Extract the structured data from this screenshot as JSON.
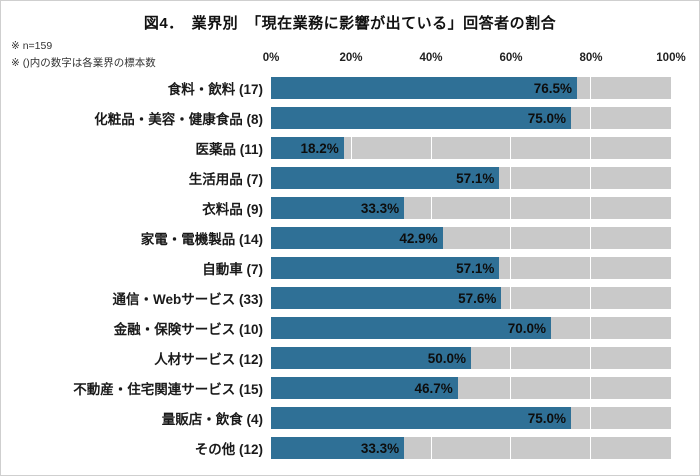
{
  "title": "図4．　業界別　「現在業務に影響が出ている」回答者の割合",
  "notes": [
    "※ n=159",
    "※ ()内の数字は各業界の標本数"
  ],
  "chart_data": {
    "type": "bar",
    "orientation": "horizontal",
    "title": "図4．　業界別　「現在業務に影響が出ている」回答者の割合",
    "categories": [
      "食料・飲料 (17)",
      "化粧品・美容・健康食品 (8)",
      "医薬品 (11)",
      "生活用品 (7)",
      "衣料品 (9)",
      "家電・電機製品 (14)",
      "自動車 (7)",
      "通信・Webサービス (33)",
      "金融・保険サービス (10)",
      "人材サービス (12)",
      "不動産・住宅関連サービス (15)",
      "量販店・飲食 (4)",
      "その他 (12)"
    ],
    "values": [
      76.5,
      75.0,
      18.2,
      57.1,
      33.3,
      42.9,
      57.1,
      57.6,
      70.0,
      50.0,
      46.7,
      75.0,
      33.3
    ],
    "value_labels": [
      "76.5%",
      "75.0%",
      "18.2%",
      "57.1%",
      "33.3%",
      "42.9%",
      "57.1%",
      "57.6%",
      "70.0%",
      "50.0%",
      "46.7%",
      "75.0%",
      "33.3%"
    ],
    "x_ticks": [
      "0%",
      "20%",
      "40%",
      "60%",
      "80%",
      "100%"
    ],
    "xlim": [
      0,
      100
    ],
    "grid": true,
    "legend": "none",
    "colors": {
      "bar": "#2f7096",
      "track": "#c9c9c9",
      "gridline": "#ffffff"
    }
  }
}
